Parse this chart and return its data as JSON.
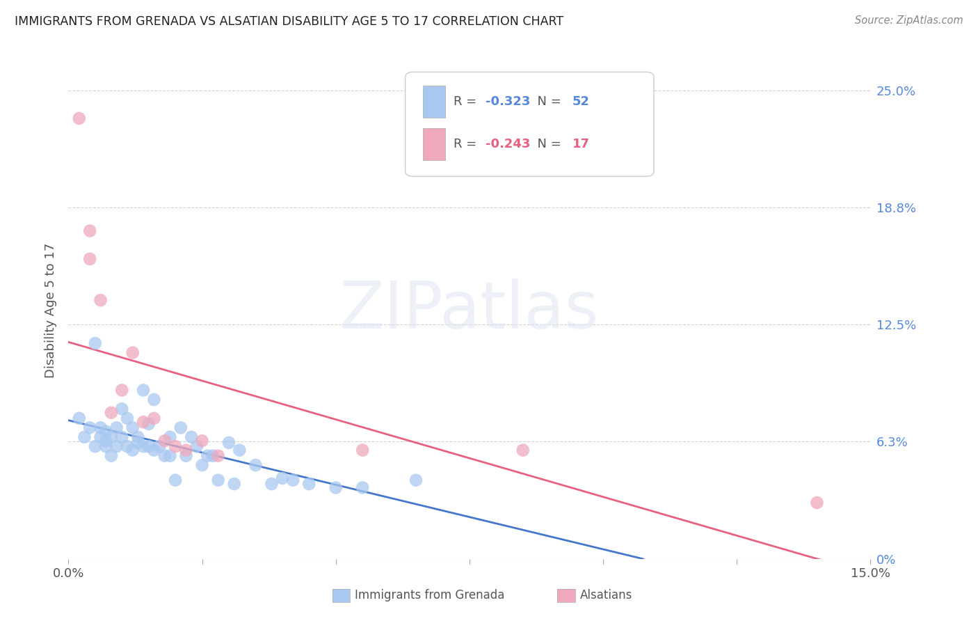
{
  "title": "IMMIGRANTS FROM GRENADA VS ALSATIAN DISABILITY AGE 5 TO 17 CORRELATION CHART",
  "source": "Source: ZipAtlas.com",
  "ylabel": "Disability Age 5 to 17",
  "xlim": [
    0.0,
    0.15
  ],
  "ylim": [
    0.0,
    0.265
  ],
  "yticks": [
    0.0,
    0.0625,
    0.125,
    0.1875,
    0.25
  ],
  "ytick_labels": [
    "0%",
    "6.3%",
    "12.5%",
    "18.8%",
    "25.0%"
  ],
  "xtick_positions": [
    0.0,
    0.025,
    0.05,
    0.075,
    0.1,
    0.125,
    0.15
  ],
  "xtick_labels": [
    "0.0%",
    "",
    "",
    "",
    "",
    "",
    "15.0%"
  ],
  "blue_r": -0.323,
  "blue_n": 52,
  "pink_r": -0.243,
  "pink_n": 17,
  "blue_color": "#a8c8f0",
  "pink_color": "#f0a8bc",
  "blue_line_color": "#4477cc",
  "pink_line_color": "#e86080",
  "right_label_color": "#5588dd",
  "title_color": "#222222",
  "source_color": "#888888",
  "label_color": "#555555",
  "grid_color": "#cccccc",
  "bg_color": "#ffffff",
  "watermark_text": "ZIPatlas",
  "legend_label_blue": "Immigrants from Grenada",
  "legend_label_pink": "Alsatians",
  "blue_scatter_x": [
    0.002,
    0.003,
    0.004,
    0.005,
    0.005,
    0.006,
    0.006,
    0.007,
    0.007,
    0.007,
    0.008,
    0.008,
    0.009,
    0.009,
    0.01,
    0.01,
    0.011,
    0.011,
    0.012,
    0.012,
    0.013,
    0.013,
    0.014,
    0.014,
    0.015,
    0.015,
    0.016,
    0.016,
    0.017,
    0.018,
    0.019,
    0.019,
    0.02,
    0.021,
    0.022,
    0.023,
    0.024,
    0.025,
    0.026,
    0.027,
    0.028,
    0.03,
    0.031,
    0.032,
    0.035,
    0.038,
    0.04,
    0.042,
    0.045,
    0.05,
    0.055,
    0.065
  ],
  "blue_scatter_y": [
    0.075,
    0.065,
    0.07,
    0.115,
    0.06,
    0.065,
    0.07,
    0.06,
    0.063,
    0.068,
    0.055,
    0.065,
    0.06,
    0.07,
    0.065,
    0.08,
    0.06,
    0.075,
    0.058,
    0.07,
    0.065,
    0.062,
    0.06,
    0.09,
    0.072,
    0.06,
    0.058,
    0.085,
    0.06,
    0.055,
    0.055,
    0.065,
    0.042,
    0.07,
    0.055,
    0.065,
    0.06,
    0.05,
    0.055,
    0.055,
    0.042,
    0.062,
    0.04,
    0.058,
    0.05,
    0.04,
    0.043,
    0.042,
    0.04,
    0.038,
    0.038,
    0.042
  ],
  "pink_scatter_x": [
    0.002,
    0.004,
    0.004,
    0.006,
    0.008,
    0.01,
    0.012,
    0.014,
    0.016,
    0.018,
    0.02,
    0.022,
    0.025,
    0.028,
    0.055,
    0.085,
    0.14
  ],
  "pink_scatter_y": [
    0.235,
    0.175,
    0.16,
    0.138,
    0.078,
    0.09,
    0.11,
    0.073,
    0.075,
    0.063,
    0.06,
    0.058,
    0.063,
    0.055,
    0.058,
    0.058,
    0.03
  ]
}
